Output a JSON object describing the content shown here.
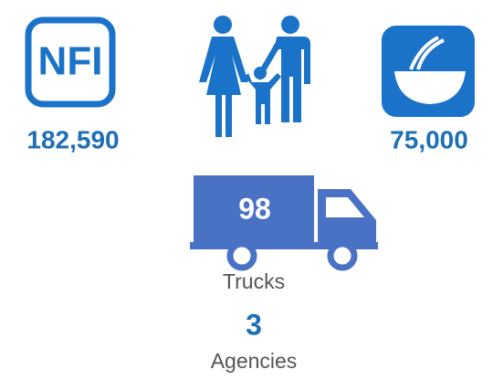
{
  "nfi": {
    "icon_label": "NFI",
    "value": "182,590"
  },
  "food": {
    "value": "75,000"
  },
  "trucks": {
    "value": "98",
    "label": "Trucks"
  },
  "agencies": {
    "value": "3",
    "label": "Agencies"
  }
}
